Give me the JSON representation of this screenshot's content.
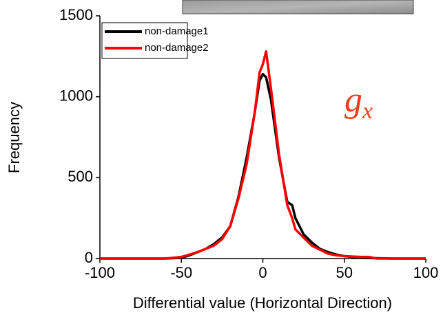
{
  "chart_data": {
    "type": "line",
    "x_label": "Differential value (Horizontal Direction)",
    "y_label": "Frequency",
    "annotation": "g",
    "annotation_subscript": "x",
    "x": [
      -100,
      -75,
      -60,
      -50,
      -45,
      -40,
      -35,
      -30,
      -25,
      -20,
      -15,
      -10,
      -5,
      -2,
      0,
      2,
      5,
      10,
      15,
      18,
      20,
      25,
      30,
      35,
      40,
      45,
      50,
      60,
      65,
      70,
      80,
      100
    ],
    "series": [
      {
        "name": "non-damage1",
        "color": "#000000",
        "values": [
          0,
          0,
          0,
          5,
          20,
          40,
          60,
          90,
          130,
          200,
          380,
          620,
          900,
          1100,
          1140,
          1120,
          980,
          620,
          350,
          330,
          250,
          150,
          100,
          60,
          40,
          25,
          15,
          5,
          3,
          2,
          0,
          0
        ]
      },
      {
        "name": "non-damage2",
        "color": "#ff0000",
        "values": [
          0,
          0,
          0,
          10,
          25,
          40,
          60,
          80,
          120,
          200,
          370,
          580,
          900,
          1150,
          1200,
          1280,
          1050,
          640,
          330,
          250,
          180,
          130,
          80,
          55,
          30,
          20,
          15,
          10,
          10,
          0,
          0,
          0
        ]
      }
    ],
    "xlim": [
      -100,
      100
    ],
    "ylim": [
      0,
      1500
    ],
    "xticks": [
      -100,
      -50,
      0,
      50,
      100
    ],
    "yticks": [
      0,
      500,
      1000,
      1500
    ],
    "grid": false,
    "legend": "upper left"
  }
}
